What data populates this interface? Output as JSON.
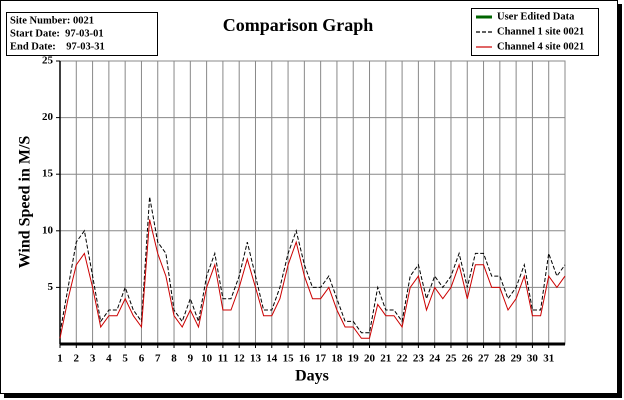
{
  "chart_data": {
    "type": "line",
    "title": "Comparison Graph",
    "info": [
      "Site Number: 0021",
      "Start Date:  97-03-01",
      "End Date:    97-03-31"
    ],
    "xlabel": "Days",
    "ylabel": "Wind Speed in M/S",
    "xlim": [
      1,
      32
    ],
    "xticks": [
      1,
      2,
      3,
      4,
      5,
      6,
      7,
      8,
      9,
      10,
      11,
      12,
      13,
      14,
      15,
      16,
      17,
      18,
      19,
      20,
      21,
      22,
      23,
      24,
      25,
      26,
      27,
      28,
      29,
      30,
      31
    ],
    "ylim": [
      0,
      25
    ],
    "yticks": [
      5,
      10,
      15,
      20,
      25
    ],
    "grid": true,
    "legend": "top-right",
    "x": [
      1,
      1.5,
      2,
      2.5,
      3,
      3.5,
      4,
      4.5,
      5,
      5.5,
      6,
      6.5,
      7,
      7.5,
      8,
      8.5,
      9,
      9.5,
      10,
      10.5,
      11,
      11.5,
      12,
      12.5,
      13,
      13.5,
      14,
      14.5,
      15,
      15.5,
      16,
      16.5,
      17,
      17.5,
      18,
      18.5,
      19,
      19.5,
      20,
      20.5,
      21,
      21.5,
      22,
      22.5,
      23,
      23.5,
      24,
      24.5,
      25,
      25.5,
      26,
      26.5,
      27,
      27.5,
      28,
      28.5,
      29,
      29.5,
      30,
      30.5,
      31,
      31.5,
      32
    ],
    "series": [
      {
        "name": "User Edited Data",
        "color": "#006400",
        "dash": false,
        "values": [
          null,
          null,
          null,
          null,
          null,
          null,
          null,
          null,
          null,
          null,
          null,
          null,
          null,
          null,
          null,
          null,
          null,
          null,
          null,
          null,
          null,
          null,
          null,
          null,
          null,
          null,
          null,
          null,
          null,
          null,
          null,
          null,
          null,
          null,
          null,
          null,
          null,
          null,
          null,
          null,
          null,
          null,
          null,
          null,
          null,
          null,
          null,
          null,
          null,
          null,
          null,
          null,
          null,
          null,
          null,
          null,
          null,
          null,
          null,
          null,
          null,
          null,
          null
        ]
      },
      {
        "name": "Channel 1 site 0021",
        "color": "#000000",
        "dash": true,
        "values": [
          1,
          5,
          9,
          10,
          6,
          2,
          3,
          3,
          5,
          3,
          2,
          13,
          9,
          8,
          3,
          2,
          4,
          2,
          6,
          8,
          4,
          4,
          6,
          9,
          6,
          3,
          3,
          5,
          8,
          10,
          7,
          5,
          5,
          6,
          4,
          2,
          2,
          1,
          1,
          5,
          3,
          3,
          2,
          6,
          7,
          4,
          6,
          5,
          6,
          8,
          5,
          8,
          8,
          6,
          6,
          4,
          5,
          7,
          3,
          3,
          8,
          6,
          7
        ]
      },
      {
        "name": "Channel 4 site 0021",
        "color": "#cc0000",
        "dash": false,
        "values": [
          0.5,
          4,
          7,
          8,
          5,
          1.5,
          2.5,
          2.5,
          4,
          2.5,
          1.5,
          11,
          8,
          6,
          2.5,
          1.5,
          3,
          1.5,
          5,
          7,
          3,
          3,
          5,
          7.5,
          5,
          2.5,
          2.5,
          4,
          7,
          9,
          6,
          4,
          4,
          5,
          3,
          1.5,
          1.5,
          0.5,
          0.5,
          3.5,
          2.5,
          2.5,
          1.5,
          5,
          6,
          3,
          5,
          4,
          5,
          7,
          4,
          7,
          7,
          5,
          5,
          3,
          4,
          6,
          2.5,
          2.5,
          6,
          5,
          6
        ]
      }
    ]
  }
}
